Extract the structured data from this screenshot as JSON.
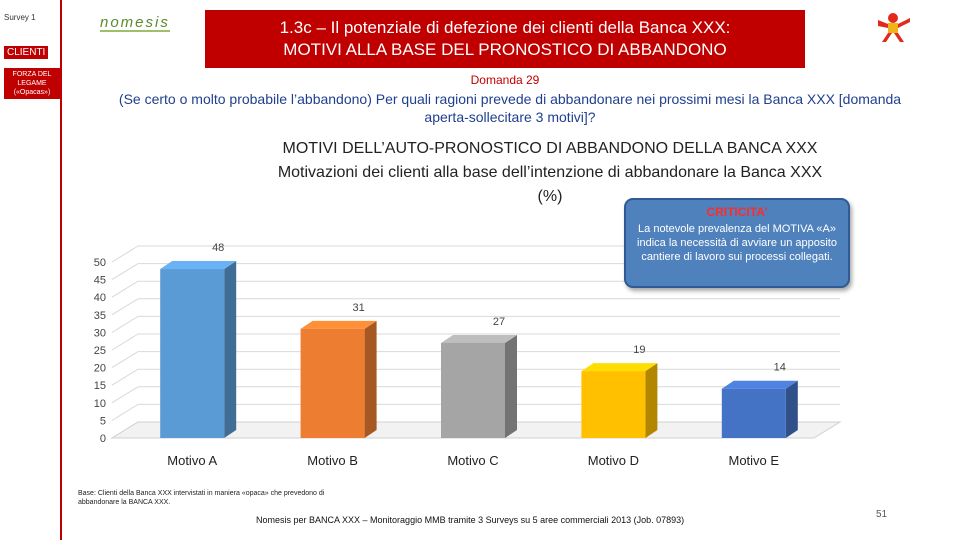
{
  "sidebar": {
    "survey": "Survey 1",
    "section": "CLIENTI",
    "subsection": "FORZA DEL LEGAME («Opacas»)"
  },
  "logo": {
    "text": "nomesis"
  },
  "header": {
    "title_line1": "1.3c – Il potenziale di defezione dei clienti della Banca XXX:",
    "title_line2": "MOTIVI ALLA BASE DEL PRONOSTICO DI ABBANDONO"
  },
  "question": {
    "number": "Domanda 29",
    "text": "(Se certo o molto probabile l’abbandono) Per quali ragioni prevede di abbandonare nei prossimi mesi la Banca XXX [domanda aperta-sollecitare 3 motivi]?"
  },
  "callout": {
    "title": "CRITICITA’",
    "text": "La notevole prevalenza del MOTIVA «A» indica la necessità di avviare un apposito cantiere di lavoro sui processi collegati."
  },
  "chart_data": {
    "type": "bar",
    "title_line1": "MOTIVI DELL’AUTO-PRONOSTICO DI ABBANDONO DELLA BANCA XXX",
    "title_line2": "Motivazioni dei clienti alla base dell’intenzione di abbandonare la Banca XXX",
    "title_line3": "(%)",
    "categories": [
      "Motivo A",
      "Motivo B",
      "Motivo C",
      "Motivo D",
      "Motivo E"
    ],
    "values": [
      48,
      31,
      27,
      19,
      14
    ],
    "colors": [
      "#5b9bd5",
      "#ed7d31",
      "#a5a5a5",
      "#ffc000",
      "#4472c4"
    ],
    "ylim": [
      0,
      50
    ],
    "yticks": [
      "0",
      "5",
      "10",
      "15",
      "20",
      "25",
      "30",
      "35",
      "40",
      "45",
      "50"
    ],
    "grid": true,
    "style": "3d-column"
  },
  "notes": {
    "base": "Base: Clienti della Banca XXX intervistati in maniera «opaca» che prevedono di abbandonare la BANCA XXX.",
    "footer": "Nomesis per BANCA XXX – Monitoraggio MMB tramite 3 Surveys su 5 aree commerciali 2013 (Job. 07893)",
    "page": "51"
  }
}
